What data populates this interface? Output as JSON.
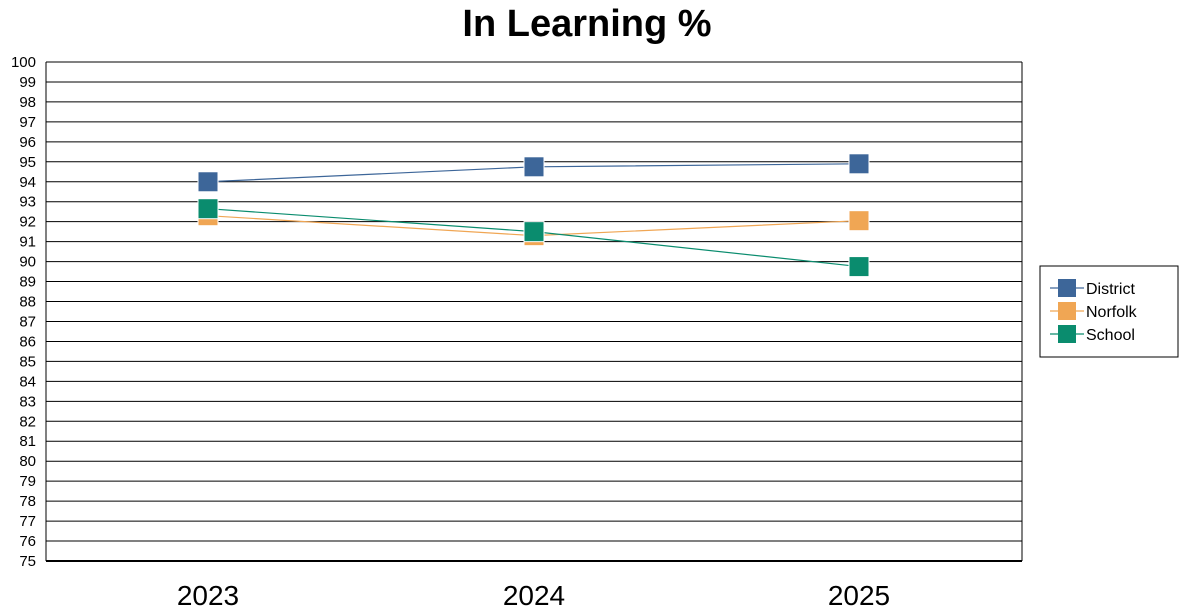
{
  "chart_data": {
    "type": "line",
    "title": "In Learning %",
    "xlabel": "",
    "ylabel": "",
    "categories": [
      "2023",
      "2024",
      "2025"
    ],
    "ylim": [
      75,
      100
    ],
    "yticks": [
      75,
      76,
      77,
      78,
      79,
      80,
      81,
      82,
      83,
      84,
      85,
      86,
      87,
      88,
      89,
      90,
      91,
      92,
      93,
      94,
      95,
      96,
      97,
      98,
      99,
      100
    ],
    "grid": true,
    "legend_position": "right",
    "series": [
      {
        "name": "District",
        "color": "#3d6699",
        "values": [
          94.0,
          94.75,
          94.9
        ]
      },
      {
        "name": "Norfolk",
        "color": "#f0a654",
        "values": [
          92.3,
          91.3,
          92.05
        ]
      },
      {
        "name": "School",
        "color": "#0a8c6e",
        "values": [
          92.65,
          91.5,
          89.75
        ]
      }
    ],
    "marker": "square-icon"
  }
}
